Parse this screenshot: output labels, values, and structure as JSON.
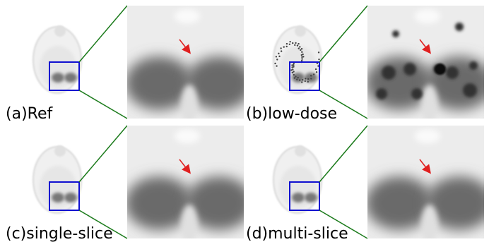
{
  "panels": [
    {
      "label": "(a)Ref"
    },
    {
      "label": "(b)low-dose"
    },
    {
      "label": "(c)single-slice"
    },
    {
      "label": "(d)multi-slice"
    }
  ]
}
